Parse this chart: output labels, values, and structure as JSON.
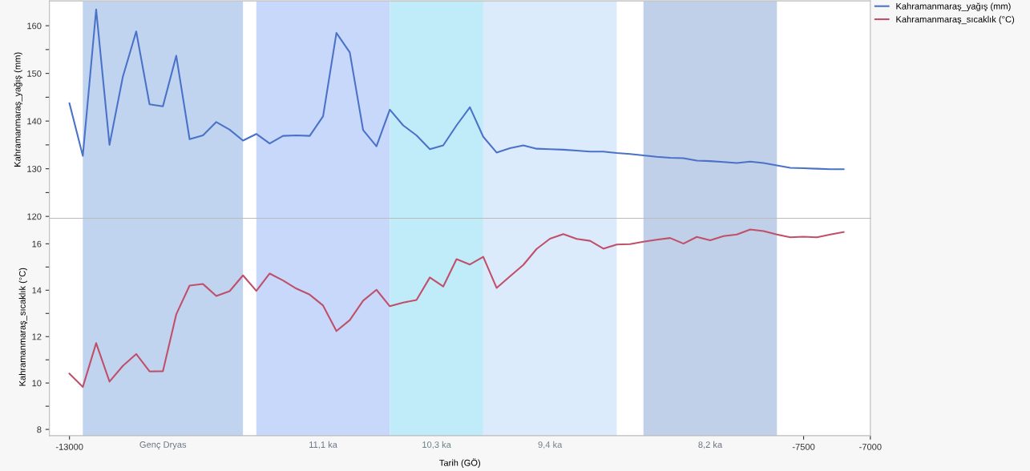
{
  "chart_data": [
    {
      "type": "line",
      "ylabel": "Kahramanmaraş_yağış (mm)",
      "tick_labels": "y",
      "legend": "right",
      "grid": false,
      "xlim": [
        -13150,
        -7000
      ],
      "ylim": [
        119.6,
        165.2
      ],
      "yticks": [
        120,
        {
          "value": 125,
          "label": null
        },
        130,
        {
          "value": 135,
          "label": null
        },
        140,
        {
          "value": 145,
          "label": null
        },
        150,
        {
          "value": 155,
          "label": null
        },
        160
      ],
      "bands": [
        {
          "axis": "x",
          "from": -12900,
          "to": -11700,
          "color": "#c0d4f0"
        },
        {
          "axis": "x",
          "from": -11600,
          "to": -10600,
          "color": "#c8d8fa"
        },
        {
          "axis": "x",
          "from": -10600,
          "to": -9900,
          "color": "#c0ecfa"
        },
        {
          "axis": "x",
          "from": -9900,
          "to": -8900,
          "color": "#dcebfc"
        },
        {
          "axis": "x",
          "from": -8700,
          "to": -7700,
          "color": "#c0d0e8"
        }
      ],
      "series": [
        {
          "name": "Kahramanmaraş_yağış (mm)",
          "color": "#4a72c8",
          "x": [
            -13000,
            -12900,
            -12800,
            -12700,
            -12600,
            -12500,
            -12400,
            -12300,
            -12200,
            -12100,
            -12000,
            -11900,
            -11800,
            -11700,
            -11600,
            -11500,
            -11400,
            -11300,
            -11200,
            -11100,
            -11000,
            -10900,
            -10800,
            -10700,
            -10600,
            -10500,
            -10400,
            -10300,
            -10200,
            -10100,
            -10000,
            -9900,
            -9800,
            -9700,
            -9600,
            -9500,
            -9400,
            -9300,
            -9200,
            -9100,
            -9000,
            -8900,
            -8800,
            -8700,
            -8600,
            -8500,
            -8400,
            -8300,
            -8200,
            -8100,
            -8000,
            -7900,
            -7800,
            -7700,
            -7600,
            -7500,
            -7400,
            -7300,
            -7200
          ],
          "values": [
            143.7,
            132.7,
            163.4,
            135.0,
            149.3,
            158.8,
            143.5,
            143.1,
            153.7,
            136.2,
            137.0,
            139.8,
            138.2,
            135.9,
            137.3,
            135.3,
            136.9,
            137.0,
            136.9,
            141.0,
            158.5,
            154.4,
            138.1,
            134.7,
            142.4,
            139.1,
            137.0,
            134.1,
            134.9,
            139.1,
            142.9,
            136.7,
            133.4,
            134.3,
            134.9,
            134.2,
            134.1,
            134.0,
            133.8,
            133.6,
            133.6,
            133.3,
            133.1,
            132.8,
            132.5,
            132.3,
            132.2,
            131.7,
            131.6,
            131.4,
            131.2,
            131.5,
            131.2,
            130.7,
            130.2,
            130.1,
            130.0,
            129.9,
            129.9
          ]
        }
      ]
    },
    {
      "type": "line",
      "ylabel": "Kahramanmaraş_sıcaklık (°C)",
      "xlabel": "Tarih (GÖ)",
      "legend": "right",
      "grid": false,
      "xlim": [
        -13150,
        -7000
      ],
      "xticks": [
        -13000,
        -7500,
        -7000
      ],
      "ylim": [
        7.73,
        17.1
      ],
      "yticks": [
        8,
        {
          "value": 9,
          "label": null
        },
        10,
        {
          "value": 11,
          "label": null
        },
        12,
        {
          "value": 13,
          "label": null
        },
        14,
        {
          "value": 15,
          "label": null
        },
        16
      ],
      "bands": [
        {
          "axis": "x",
          "from": -12900,
          "to": -11700,
          "color": "#c0d4f0",
          "label": "Genç Dryas"
        },
        {
          "axis": "x",
          "from": -11600,
          "to": -10600,
          "color": "#c8d8fa",
          "label": "11,1 ka"
        },
        {
          "axis": "x",
          "from": -10600,
          "to": -9900,
          "color": "#c0ecfa",
          "label": "10,3 ka"
        },
        {
          "axis": "x",
          "from": -9900,
          "to": -8900,
          "color": "#dcebfc",
          "label": "9,4 ka"
        },
        {
          "axis": "x",
          "from": -8700,
          "to": -7700,
          "color": "#c0d0e8",
          "label": "8,2 ka"
        }
      ],
      "series": [
        {
          "name": "Kahramanmaraş_sıcaklık (°C)",
          "color": "#c0506a",
          "x": [
            -13000,
            -12900,
            -12800,
            -12700,
            -12600,
            -12500,
            -12400,
            -12300,
            -12200,
            -12100,
            -12000,
            -11900,
            -11800,
            -11700,
            -11600,
            -11500,
            -11400,
            -11300,
            -11200,
            -11100,
            -11000,
            -10900,
            -10800,
            -10700,
            -10600,
            -10500,
            -10400,
            -10300,
            -10200,
            -10100,
            -10000,
            -9900,
            -9800,
            -9700,
            -9600,
            -9500,
            -9400,
            -9300,
            -9200,
            -9100,
            -9000,
            -8900,
            -8800,
            -8700,
            -8600,
            -8500,
            -8400,
            -8300,
            -8200,
            -8100,
            -8000,
            -7900,
            -7800,
            -7700,
            -7600,
            -7500,
            -7400,
            -7300,
            -7200
          ],
          "values": [
            10.4,
            9.83,
            11.72,
            10.06,
            10.74,
            11.25,
            10.5,
            10.51,
            12.96,
            14.2,
            14.27,
            13.75,
            13.96,
            14.64,
            13.97,
            14.72,
            14.42,
            14.07,
            13.81,
            13.34,
            12.24,
            12.71,
            13.55,
            14.02,
            13.31,
            13.47,
            13.58,
            14.55,
            14.16,
            15.34,
            15.11,
            15.44,
            14.1,
            14.6,
            15.09,
            15.78,
            16.22,
            16.42,
            16.21,
            16.13,
            15.79,
            15.97,
            15.99,
            16.09,
            16.18,
            16.25,
            16.01,
            16.3,
            16.15,
            16.33,
            16.4,
            16.62,
            16.55,
            16.4,
            16.28,
            16.31,
            16.28,
            16.4,
            16.51
          ]
        }
      ]
    }
  ]
}
